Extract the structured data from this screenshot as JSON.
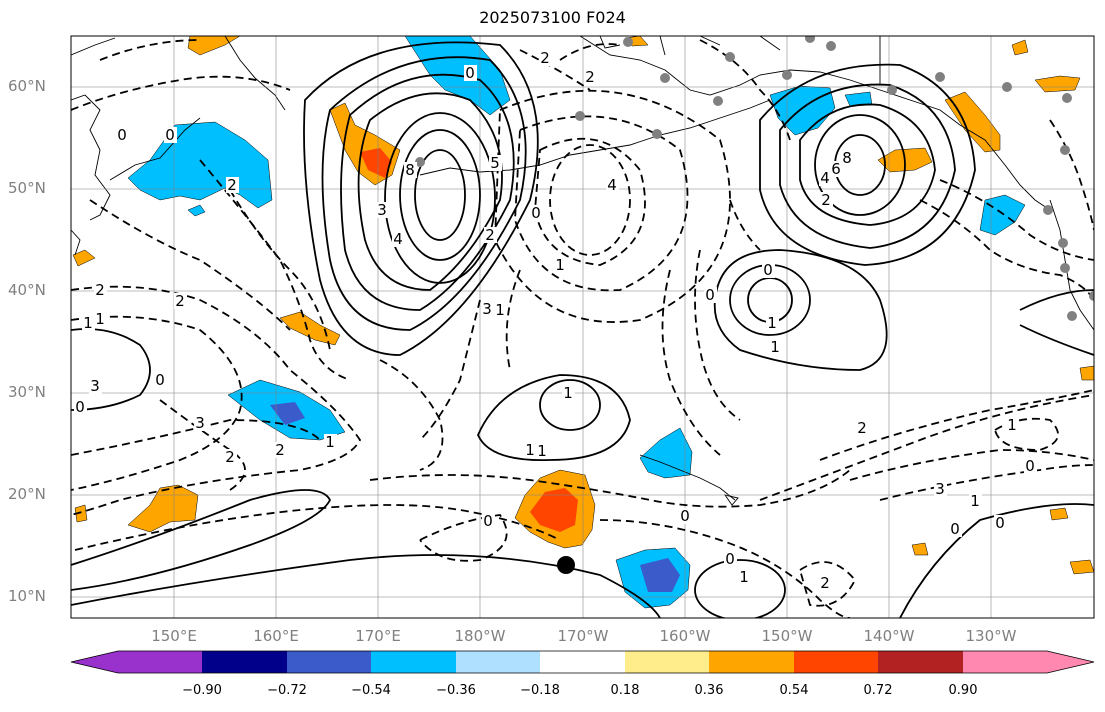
{
  "title": "2025073100 F024",
  "lat_labels": [
    "60°N",
    "50°N",
    "40°N",
    "30°N",
    "20°N",
    "10°N"
  ],
  "lon_labels": [
    "150°E",
    "160°E",
    "170°E",
    "180°W",
    "170°W",
    "160°W",
    "150°W",
    "140°W",
    "130°W"
  ],
  "colorbar": {
    "ticks": [
      "−0.90",
      "−0.72",
      "−0.54",
      "−0.36",
      "−0.18",
      "0.18",
      "0.36",
      "0.54",
      "0.72",
      "0.90"
    ],
    "colors": [
      "#9932cc",
      "#00008b",
      "#3a5bc9",
      "#00bfff",
      "#b0e0ff",
      "#ffffff",
      "#ffec8b",
      "#ffa500",
      "#ff4500",
      "#b22222",
      "#ff88b0"
    ]
  },
  "contour_labels": [
    "0",
    "0",
    "1",
    "3",
    "2",
    "1",
    "2",
    "2",
    "0",
    "3",
    "2",
    "2",
    "1",
    "0",
    "4",
    "8",
    "3",
    "5",
    "3",
    "2",
    "1",
    "0",
    "1",
    "4",
    "0",
    "2",
    "2",
    "1",
    "8",
    "6",
    "4",
    "2",
    "1",
    "0",
    "0",
    "1",
    "1",
    "1",
    "0",
    "0",
    "0",
    "1",
    "2",
    "2",
    "3",
    "1",
    "0",
    "1",
    "0",
    "0"
  ],
  "map": {
    "projection": "equirectangular",
    "lat_range": [
      8,
      65
    ],
    "lon_range": [
      140,
      240
    ]
  }
}
